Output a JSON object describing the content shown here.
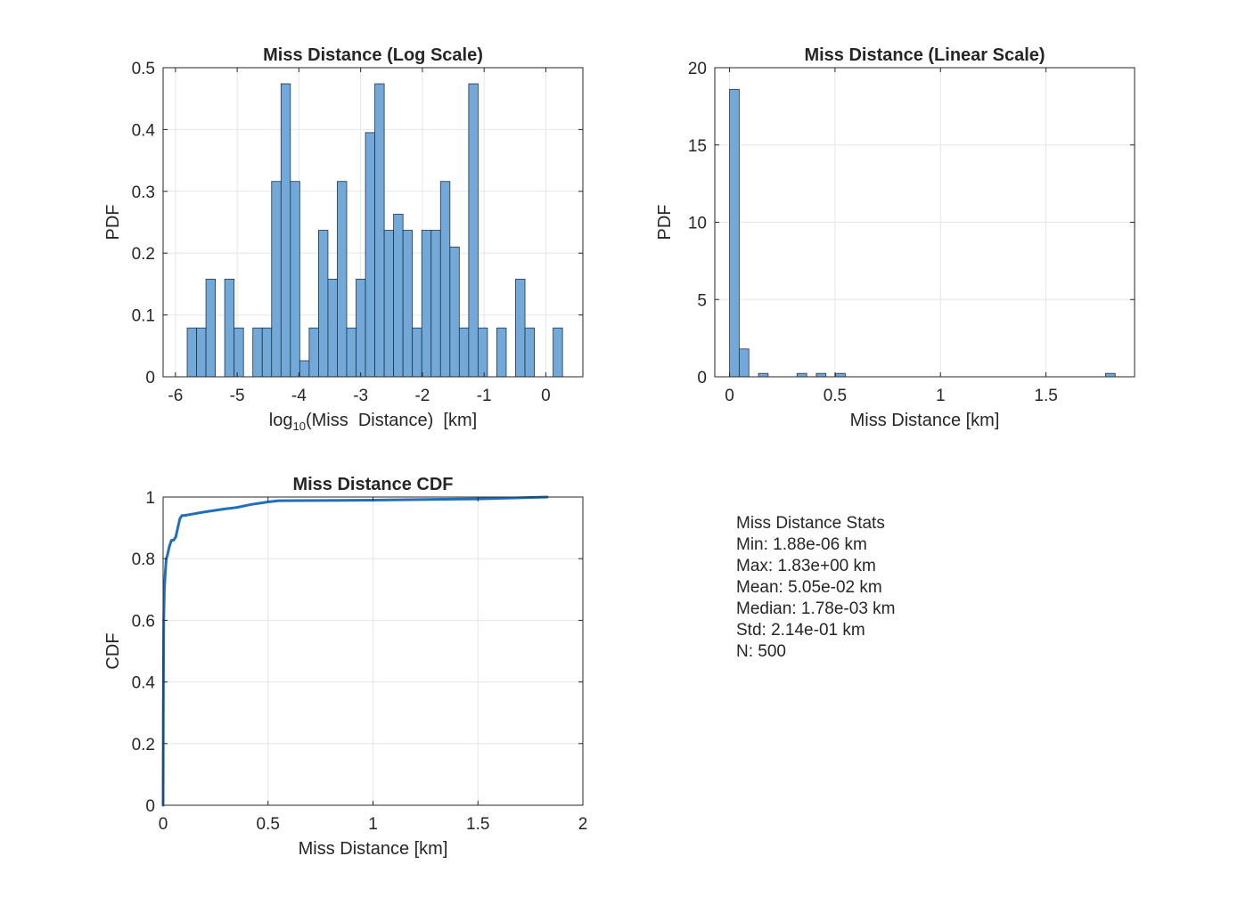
{
  "figure": {
    "background": "#ffffff",
    "axes_color": "#262626",
    "grid_color": "#e6e6e6"
  },
  "chart_data": [
    {
      "type": "bar",
      "title": "Miss Distance (Log Scale)",
      "xlabel_main": "log",
      "xlabel_sub": "10",
      "xlabel_rest": "(Miss  Distance)  [km]",
      "ylabel": "PDF",
      "xlim": [
        -6.2,
        0.6
      ],
      "ylim": [
        0,
        0.5
      ],
      "xticks": [
        -6,
        -5,
        -4,
        -3,
        -2,
        -1,
        0
      ],
      "yticks": [
        0,
        0.1,
        0.2,
        0.3,
        0.4,
        0.5
      ],
      "grid": true,
      "bar_color": "#72a9d8",
      "edge_color": "#1f3447",
      "bin_width": 0.152,
      "bin_starts": [
        -5.81,
        -5.658,
        -5.506,
        -5.202,
        -5.05,
        -4.746,
        -4.594,
        -4.442,
        -4.29,
        -4.138,
        -3.986,
        -3.834,
        -3.682,
        -3.53,
        -3.378,
        -3.226,
        -3.074,
        -2.922,
        -2.77,
        -2.618,
        -2.466,
        -2.314,
        -2.162,
        -2.01,
        -1.858,
        -1.706,
        -1.554,
        -1.402,
        -1.25,
        -1.098,
        -0.794,
        -0.49,
        -0.338,
        0.118
      ],
      "values": [
        0.079,
        0.079,
        0.158,
        0.158,
        0.079,
        0.079,
        0.079,
        0.316,
        0.474,
        0.316,
        0.026,
        0.079,
        0.237,
        0.158,
        0.316,
        0.079,
        0.158,
        0.395,
        0.474,
        0.237,
        0.263,
        0.237,
        0.079,
        0.237,
        0.237,
        0.316,
        0.21,
        0.079,
        0.474,
        0.079,
        0.079,
        0.158,
        0.079,
        0.079
      ]
    },
    {
      "type": "bar",
      "title": "Miss Distance (Linear Scale)",
      "xlabel": "Miss Distance [km]",
      "ylabel": "PDF",
      "xlim": [
        -0.07,
        1.92
      ],
      "ylim": [
        0,
        20
      ],
      "xticks": [
        0,
        0.5,
        1,
        1.5
      ],
      "yticks": [
        0,
        5,
        10,
        15,
        20
      ],
      "grid": true,
      "bar_color": "#72a9d8",
      "edge_color": "#1f3447",
      "bin_width": 0.0457,
      "bin_starts": [
        0.0,
        0.0457,
        0.1371,
        0.3199,
        0.4113,
        0.5027,
        1.7822
      ],
      "values": [
        18.6,
        1.8,
        0.22,
        0.22,
        0.22,
        0.22,
        0.22
      ]
    },
    {
      "type": "line",
      "title": "Miss Distance CDF",
      "xlabel": "Miss Distance [km]",
      "ylabel": "CDF",
      "xlim": [
        0,
        2
      ],
      "ylim": [
        0,
        1
      ],
      "xticks": [
        0,
        0.5,
        1,
        1.5,
        2
      ],
      "yticks": [
        0,
        0.2,
        0.4,
        0.6,
        0.8,
        1
      ],
      "grid": true,
      "line_color": "#1f6fbd",
      "x": [
        2e-06,
        0.001,
        0.003,
        0.006,
        0.01,
        0.015,
        0.02,
        0.03,
        0.04,
        0.05,
        0.06,
        0.07,
        0.08,
        0.09,
        0.1,
        0.15,
        0.2,
        0.3,
        0.35,
        0.42,
        0.5,
        0.55,
        1.0,
        1.5,
        1.83
      ],
      "y": [
        0.0,
        0.3,
        0.6,
        0.7,
        0.75,
        0.8,
        0.81,
        0.84,
        0.86,
        0.86,
        0.87,
        0.9,
        0.93,
        0.94,
        0.94,
        0.946,
        0.952,
        0.962,
        0.966,
        0.976,
        0.984,
        0.988,
        0.99,
        0.994,
        1.0
      ]
    }
  ],
  "stats": {
    "title": "Miss Distance Stats",
    "min": "Min: 1.88e-06 km",
    "max": "Max: 1.83e+00 km",
    "mean": "Mean: 5.05e-02 km",
    "median": "Median: 1.78e-03 km",
    "std": "Std: 2.14e-01 km",
    "n": "N: 500"
  }
}
